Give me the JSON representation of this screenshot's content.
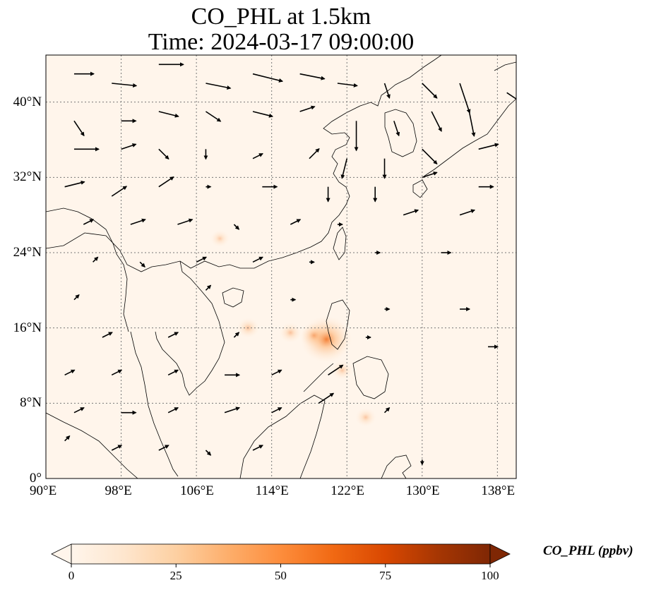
{
  "figure": {
    "title_line1": "CO_PHL at 1.5km",
    "title_line2": "Time: 2024-03-17 09:00:00"
  },
  "map": {
    "extent": {
      "lon_min": 90,
      "lon_max": 140,
      "lat_min": 0,
      "lat_max": 45
    },
    "background_color": "#fff5eb",
    "gridlines": "dotted",
    "lon_ticks": [
      {
        "value": 90,
        "label": "90°E"
      },
      {
        "value": 98,
        "label": "98°E"
      },
      {
        "value": 106,
        "label": "106°E"
      },
      {
        "value": 114,
        "label": "114°E"
      },
      {
        "value": 122,
        "label": "122°E"
      },
      {
        "value": 130,
        "label": "130°E"
      },
      {
        "value": 138,
        "label": "138°E"
      }
    ],
    "lat_ticks": [
      {
        "value": 0,
        "label": "0°"
      },
      {
        "value": 8,
        "label": "8°N"
      },
      {
        "value": 16,
        "label": "16°N"
      },
      {
        "value": 24,
        "label": "24°N"
      },
      {
        "value": 32,
        "label": "32°N"
      },
      {
        "value": 40,
        "label": "40°N"
      }
    ],
    "hotspots": [
      {
        "lon": 119.8,
        "lat": 14.8,
        "value": 22
      },
      {
        "lon": 118.5,
        "lat": 15.2,
        "value": 8
      },
      {
        "lon": 111.5,
        "lat": 16.0,
        "value": 5
      },
      {
        "lon": 116.0,
        "lat": 15.5,
        "value": 5
      },
      {
        "lon": 121.5,
        "lat": 11.5,
        "value": 4
      },
      {
        "lon": 124.0,
        "lat": 6.5,
        "value": 4
      },
      {
        "lon": 108.5,
        "lat": 25.5,
        "value": 3
      }
    ],
    "wind_vectors": [
      {
        "lon": 93,
        "lat": 43,
        "u": 4,
        "v": 0
      },
      {
        "lon": 97,
        "lat": 42,
        "u": 5,
        "v": -0.5
      },
      {
        "lon": 102,
        "lat": 44,
        "u": 5,
        "v": 0
      },
      {
        "lon": 107,
        "lat": 42,
        "u": 5,
        "v": -1
      },
      {
        "lon": 112,
        "lat": 43,
        "u": 6,
        "v": -1.5
      },
      {
        "lon": 117,
        "lat": 43,
        "u": 5,
        "v": -1
      },
      {
        "lon": 121,
        "lat": 42,
        "u": 4,
        "v": -0.5
      },
      {
        "lon": 126,
        "lat": 42,
        "u": 1,
        "v": -3
      },
      {
        "lon": 130,
        "lat": 42,
        "u": 3,
        "v": -3
      },
      {
        "lon": 134,
        "lat": 42,
        "u": 2,
        "v": -6
      },
      {
        "lon": 139,
        "lat": 41,
        "u": 3,
        "v": -2
      },
      {
        "lon": 93,
        "lat": 38,
        "u": 2,
        "v": -3
      },
      {
        "lon": 98,
        "lat": 38,
        "u": 3,
        "v": 0
      },
      {
        "lon": 102,
        "lat": 39,
        "u": 4,
        "v": -1
      },
      {
        "lon": 107,
        "lat": 39,
        "u": 3,
        "v": -2
      },
      {
        "lon": 112,
        "lat": 39,
        "u": 4,
        "v": -1
      },
      {
        "lon": 117,
        "lat": 39,
        "u": 3,
        "v": 1
      },
      {
        "lon": 123,
        "lat": 38,
        "u": 0,
        "v": -6
      },
      {
        "lon": 127,
        "lat": 38,
        "u": 1,
        "v": -3
      },
      {
        "lon": 131,
        "lat": 39,
        "u": 2,
        "v": -4
      },
      {
        "lon": 135,
        "lat": 39,
        "u": 1,
        "v": -5
      },
      {
        "lon": 93,
        "lat": 35,
        "u": 5,
        "v": 0
      },
      {
        "lon": 98,
        "lat": 35,
        "u": 3,
        "v": 1
      },
      {
        "lon": 102,
        "lat": 35,
        "u": 2,
        "v": -2
      },
      {
        "lon": 107,
        "lat": 35,
        "u": 0,
        "v": -2
      },
      {
        "lon": 112,
        "lat": 34,
        "u": 2,
        "v": 1
      },
      {
        "lon": 118,
        "lat": 34,
        "u": 2,
        "v": 2
      },
      {
        "lon": 122,
        "lat": 34,
        "u": -1,
        "v": -4
      },
      {
        "lon": 126,
        "lat": 34,
        "u": 0,
        "v": -4
      },
      {
        "lon": 130,
        "lat": 35,
        "u": 3,
        "v": -3
      },
      {
        "lon": 136,
        "lat": 35,
        "u": 4,
        "v": 1
      },
      {
        "lon": 92,
        "lat": 31,
        "u": 4,
        "v": 1
      },
      {
        "lon": 97,
        "lat": 30,
        "u": 3,
        "v": 2
      },
      {
        "lon": 102,
        "lat": 31,
        "u": 3,
        "v": 2
      },
      {
        "lon": 107,
        "lat": 31,
        "u": 1,
        "v": 0
      },
      {
        "lon": 113,
        "lat": 31,
        "u": 3,
        "v": 0
      },
      {
        "lon": 120,
        "lat": 31,
        "u": 0,
        "v": -3
      },
      {
        "lon": 125,
        "lat": 31,
        "u": 0,
        "v": -3
      },
      {
        "lon": 130,
        "lat": 32,
        "u": 3,
        "v": 1
      },
      {
        "lon": 136,
        "lat": 31,
        "u": 3,
        "v": 0
      },
      {
        "lon": 94,
        "lat": 27,
        "u": 2,
        "v": 1
      },
      {
        "lon": 99,
        "lat": 27,
        "u": 3,
        "v": 1
      },
      {
        "lon": 104,
        "lat": 27,
        "u": 3,
        "v": 1
      },
      {
        "lon": 110,
        "lat": 27,
        "u": 1,
        "v": -1
      },
      {
        "lon": 116,
        "lat": 27,
        "u": 2,
        "v": 1
      },
      {
        "lon": 121,
        "lat": 27,
        "u": 1,
        "v": 0
      },
      {
        "lon": 128,
        "lat": 28,
        "u": 3,
        "v": 1
      },
      {
        "lon": 134,
        "lat": 28,
        "u": 3,
        "v": 1
      },
      {
        "lon": 95,
        "lat": 23,
        "u": 1,
        "v": 1
      },
      {
        "lon": 100,
        "lat": 23,
        "u": 1,
        "v": -1
      },
      {
        "lon": 106,
        "lat": 23,
        "u": 2,
        "v": 1
      },
      {
        "lon": 112,
        "lat": 23,
        "u": 2,
        "v": 1
      },
      {
        "lon": 118,
        "lat": 23,
        "u": 1,
        "v": 0
      },
      {
        "lon": 125,
        "lat": 24,
        "u": 1,
        "v": 0
      },
      {
        "lon": 132,
        "lat": 24,
        "u": 2,
        "v": 0
      },
      {
        "lon": 93,
        "lat": 19,
        "u": 1,
        "v": 1
      },
      {
        "lon": 107,
        "lat": 20,
        "u": 1,
        "v": 1
      },
      {
        "lon": 116,
        "lat": 19,
        "u": 1,
        "v": 0
      },
      {
        "lon": 126,
        "lat": 18,
        "u": 1,
        "v": 0
      },
      {
        "lon": 134,
        "lat": 18,
        "u": 2,
        "v": 0
      },
      {
        "lon": 96,
        "lat": 15,
        "u": 2,
        "v": 1
      },
      {
        "lon": 103,
        "lat": 15,
        "u": 2,
        "v": 1
      },
      {
        "lon": 110,
        "lat": 15,
        "u": 1,
        "v": 1
      },
      {
        "lon": 124,
        "lat": 15,
        "u": 1,
        "v": 0
      },
      {
        "lon": 137,
        "lat": 14,
        "u": 2,
        "v": 0
      },
      {
        "lon": 92,
        "lat": 11,
        "u": 2,
        "v": 1
      },
      {
        "lon": 97,
        "lat": 11,
        "u": 2,
        "v": 1
      },
      {
        "lon": 103,
        "lat": 11,
        "u": 2,
        "v": 1
      },
      {
        "lon": 109,
        "lat": 11,
        "u": 3,
        "v": 0
      },
      {
        "lon": 114,
        "lat": 11,
        "u": 2,
        "v": 1
      },
      {
        "lon": 120,
        "lat": 11,
        "u": 3,
        "v": 2
      },
      {
        "lon": 93,
        "lat": 7,
        "u": 2,
        "v": 1
      },
      {
        "lon": 98,
        "lat": 7,
        "u": 3,
        "v": 0
      },
      {
        "lon": 103,
        "lat": 7,
        "u": 2,
        "v": 1
      },
      {
        "lon": 109,
        "lat": 7,
        "u": 3,
        "v": 1
      },
      {
        "lon": 114,
        "lat": 7,
        "u": 2,
        "v": 1
      },
      {
        "lon": 119,
        "lat": 8,
        "u": 3,
        "v": 2
      },
      {
        "lon": 126,
        "lat": 7,
        "u": 1,
        "v": 1
      },
      {
        "lon": 92,
        "lat": 4,
        "u": 1,
        "v": 1
      },
      {
        "lon": 97,
        "lat": 3,
        "u": 2,
        "v": 1
      },
      {
        "lon": 102,
        "lat": 3,
        "u": 2,
        "v": 1
      },
      {
        "lon": 107,
        "lat": 3,
        "u": 1,
        "v": -1
      },
      {
        "lon": 112,
        "lat": 3,
        "u": 2,
        "v": 1
      },
      {
        "lon": 130,
        "lat": 2,
        "u": 0,
        "v": -1
      }
    ]
  },
  "colorbar": {
    "label": "CO_PHL (ppbv)",
    "min": 0,
    "max": 100,
    "ticks": [
      {
        "value": 0,
        "label": "0"
      },
      {
        "value": 25,
        "label": "25"
      },
      {
        "value": 50,
        "label": "50"
      },
      {
        "value": 75,
        "label": "75"
      },
      {
        "value": 100,
        "label": "100"
      }
    ],
    "colormap_stops": [
      "#fff5eb",
      "#fee6ce",
      "#fdd0a2",
      "#fdae6b",
      "#fd8d3c",
      "#f16913",
      "#d94801",
      "#a63603",
      "#7f2704"
    ]
  }
}
